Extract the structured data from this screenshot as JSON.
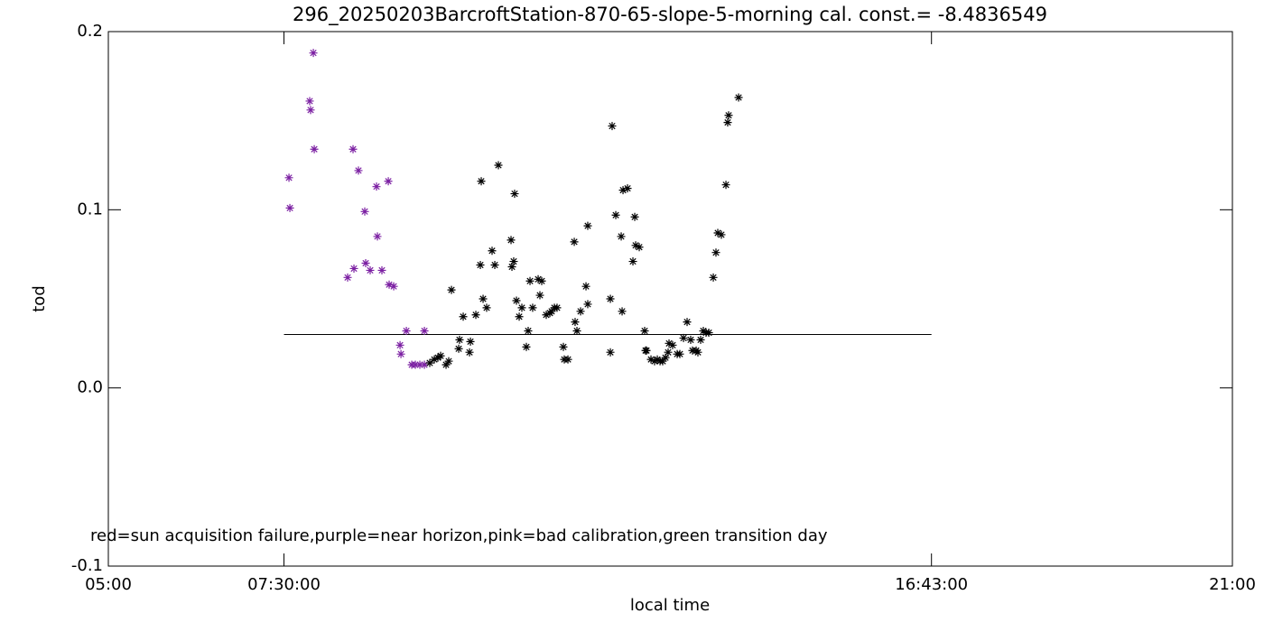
{
  "chart_data": {
    "type": "scatter",
    "title": "296_20250203BarcroftStation-870-65-slope-5-morning cal. const.= -8.4836549",
    "x_label": "local time",
    "y_label": "tod",
    "annotation": "red=sun acquisition failure,purple=near horizon,pink=bad calibration,green transition day",
    "xlim": [
      5,
      21
    ],
    "xticks": [
      {
        "value": 5,
        "label": "05:00"
      },
      {
        "value": 7.5,
        "label": "07:30:00"
      },
      {
        "value": 16.71667,
        "label": "16:43:00"
      },
      {
        "value": 21,
        "label": "21:00"
      }
    ],
    "ylim": [
      -0.1,
      0.2
    ],
    "yticks": [
      -0.1,
      {
        "value": 0,
        "label": "0.0"
      },
      0.1,
      0.2
    ],
    "reference_line": {
      "x": [
        7.5,
        16.71667
      ],
      "y": [
        0.03,
        0.03
      ]
    },
    "series": [
      {
        "color": "#7b1fa2",
        "x": [
          7.571,
          7.584,
          7.866,
          7.879,
          7.918,
          7.931,
          8.406,
          8.496,
          8.483,
          8.56,
          8.65,
          8.663,
          8.727,
          8.817,
          8.83,
          8.894,
          8.985,
          8.997,
          9.062,
          9.152,
          9.165,
          9.242,
          9.319,
          9.37,
          9.434,
          9.499,
          9.499
        ],
        "values": [
          0.118,
          0.101,
          0.161,
          0.156,
          0.188,
          0.134,
          0.062,
          0.067,
          0.134,
          0.122,
          0.099,
          0.07,
          0.066,
          0.113,
          0.085,
          0.066,
          0.116,
          0.058,
          0.057,
          0.024,
          0.019,
          0.032,
          0.013,
          0.013,
          0.013,
          0.032,
          0.013
        ]
      },
      {
        "color": "#000000",
        "x": [
          9.575,
          9.64,
          9.691,
          9.73,
          9.807,
          9.845,
          9.884,
          9.987,
          9.999,
          10.051,
          10.141,
          10.154,
          10.231,
          10.295,
          10.308,
          10.334,
          10.385,
          10.462,
          10.501,
          10.552,
          10.732,
          10.745,
          10.77,
          10.783,
          10.809,
          10.848,
          10.886,
          10.95,
          10.976,
          11.002,
          11.04,
          11.118,
          11.143,
          11.169,
          11.233,
          11.285,
          11.31,
          11.349,
          11.387,
          11.477,
          11.49,
          11.542,
          11.632,
          11.644,
          11.67,
          11.722,
          11.799,
          11.824,
          11.824,
          12.146,
          12.146,
          12.171,
          12.223,
          12.3,
          12.313,
          12.326,
          12.39,
          12.467,
          12.493,
          12.506,
          12.557,
          12.634,
          12.647,
          12.66,
          12.724,
          12.775,
          12.814,
          12.853,
          12.891,
          12.93,
          12.968,
          12.981,
          13.032,
          13.097,
          13.135,
          13.187,
          13.238,
          13.289,
          13.315,
          13.367,
          13.392,
          13.431,
          13.469,
          13.508,
          13.547,
          13.611,
          13.649,
          13.675,
          13.726,
          13.791,
          13.816,
          13.829,
          13.971
        ],
        "values": [
          0.014,
          0.016,
          0.017,
          0.018,
          0.013,
          0.015,
          0.055,
          0.022,
          0.027,
          0.04,
          0.02,
          0.026,
          0.041,
          0.069,
          0.116,
          0.05,
          0.045,
          0.077,
          0.069,
          0.125,
          0.083,
          0.068,
          0.071,
          0.109,
          0.049,
          0.04,
          0.045,
          0.023,
          0.032,
          0.06,
          0.045,
          0.061,
          0.052,
          0.06,
          0.041,
          0.042,
          0.043,
          0.045,
          0.045,
          0.023,
          0.016,
          0.016,
          0.082,
          0.037,
          0.032,
          0.043,
          0.057,
          0.047,
          0.091,
          0.05,
          0.02,
          0.147,
          0.097,
          0.085,
          0.043,
          0.111,
          0.112,
          0.071,
          0.096,
          0.08,
          0.079,
          0.032,
          0.021,
          0.021,
          0.016,
          0.015,
          0.016,
          0.015,
          0.015,
          0.017,
          0.02,
          0.025,
          0.024,
          0.019,
          0.019,
          0.028,
          0.037,
          0.027,
          0.021,
          0.021,
          0.02,
          0.027,
          0.032,
          0.031,
          0.031,
          0.062,
          0.076,
          0.087,
          0.086,
          0.114,
          0.149,
          0.153,
          0.163
        ]
      }
    ]
  }
}
